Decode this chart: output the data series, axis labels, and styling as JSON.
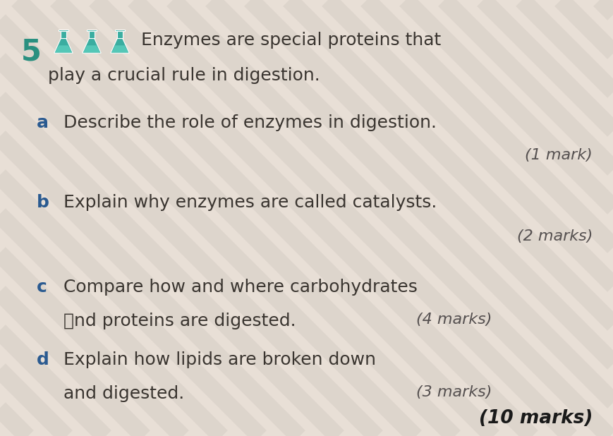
{
  "bg_color": "#e8dfd6",
  "question_number": "5",
  "question_number_color": "#2a9080",
  "intro_line1": "Enzymes are special proteins that",
  "intro_line2": "play a crucial rule in digestion.",
  "parts": [
    {
      "label": "a",
      "text_line1": "Describe the role of enzymes in digestion.",
      "text_line2": null,
      "marks": "(1 mark)",
      "marks_inline": false
    },
    {
      "label": "b",
      "text_line1": "Explain why enzymes are called catalysts.",
      "text_line2": null,
      "marks": "(2 marks)",
      "marks_inline": false
    },
    {
      "label": "c",
      "text_line1": "Compare how and where carbohydrates",
      "text_line2": "and proteins are digested.",
      "marks": "(4 marks)",
      "marks_inline": true
    },
    {
      "label": "d",
      "text_line1": "Explain how lipids are broken down",
      "text_line2": "and digested.",
      "marks": "(3 marks)",
      "marks_inline": true
    }
  ],
  "total_marks": "(10 marks)",
  "label_color": "#2a5a90",
  "text_color": "#3a3530",
  "marks_color": "#555050",
  "total_marks_color": "#1a1a1a",
  "flask_color": "#3aada0",
  "flask_liquid_color": "#5dd0c0",
  "stripe_color": "#d4ccc4",
  "stripe_alpha": 0.5
}
